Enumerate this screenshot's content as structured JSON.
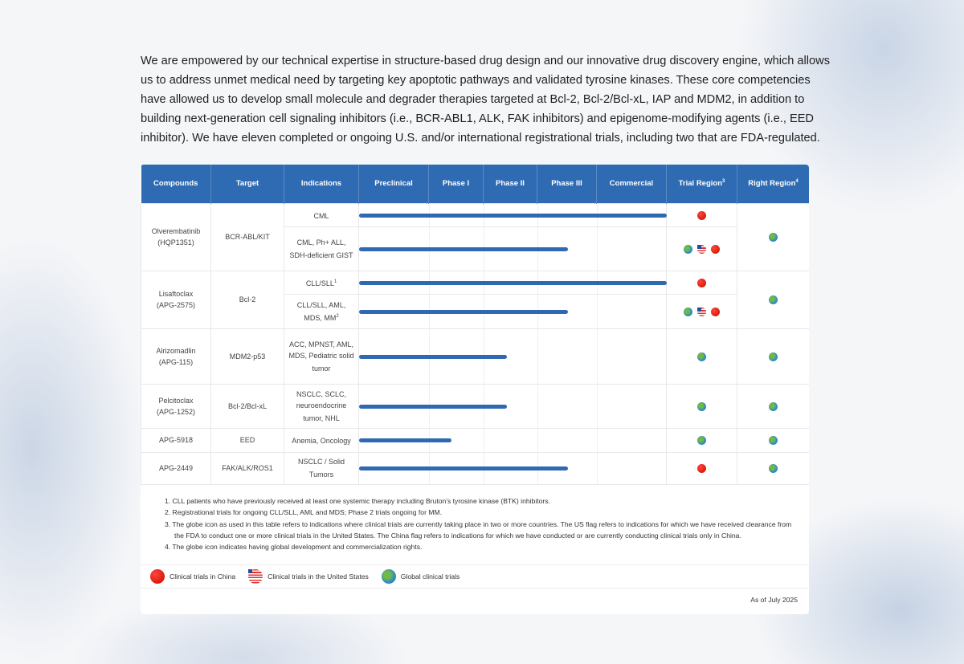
{
  "intro": "We are empowered by our technical expertise in structure-based drug design and our innovative drug discovery engine, which allows us to address unmet medical need by targeting key apoptotic pathways and validated tyrosine kinases. These core competencies have allowed us to develop small molecule and degrader therapies targeted at Bcl-2, Bcl-2/Bcl-xL, IAP and MDM2, in addition to building next-generation cell signaling inhibitors (i.e., BCR-ABL1, ALK, FAK inhibitors) and epigenome-modifying agents (i.e., EED inhibitor). We have eleven completed or ongoing U.S. and/or international registrational trials, including two that are FDA-regulated.",
  "headers": {
    "compounds": "Compounds",
    "target": "Target",
    "indications": "Indications",
    "preclinical": "Preclinical",
    "phase1": "Phase I",
    "phase2": "Phase II",
    "phase3": "Phase III",
    "commercial": "Commercial",
    "trial_region": "Trial Region",
    "trial_region_sup": "3",
    "right_region": "Right Region",
    "right_region_sup": "4"
  },
  "accent": "#2f6bb3",
  "compounds": [
    {
      "name": "Olverembatinib",
      "code": "(HQP1351)",
      "target": "BCR-ABL/KIT",
      "right": [
        "globe"
      ],
      "rows": [
        {
          "indication": "CML",
          "sup": "",
          "progress": 1.0,
          "trial": [
            "china"
          ]
        },
        {
          "indication": "CML, Ph+ ALL, SDH-deficient GIST",
          "sup": "",
          "progress": 0.68,
          "trial": [
            "globe",
            "us",
            "china"
          ]
        }
      ]
    },
    {
      "name": "Lisaftoclax",
      "code": "(APG-2575)",
      "target": "Bcl-2",
      "right": [
        "globe"
      ],
      "rows": [
        {
          "indication": "CLL/SLL",
          "sup": "1",
          "progress": 1.0,
          "trial": [
            "china"
          ]
        },
        {
          "indication": "CLL/SLL, AML, MDS, MM",
          "sup": "2",
          "progress": 0.68,
          "trial": [
            "globe",
            "us",
            "china"
          ]
        }
      ]
    },
    {
      "name": "Alrizomadlin",
      "code": "(APG-115)",
      "target": "MDM2-p53",
      "right": [
        "globe"
      ],
      "rows": [
        {
          "indication": "ACC, MPNST, AML, MDS, Pediatric solid tumor",
          "sup": "",
          "progress": 0.48,
          "trial": [
            "globe"
          ]
        }
      ]
    },
    {
      "name": "Pelcitoclax",
      "code": "(APG-1252)",
      "target": "Bcl-2/Bcl-xL",
      "right": [
        "globe"
      ],
      "rows": [
        {
          "indication": "NSCLC, SCLC, neuroendocrine tumor, NHL",
          "sup": "",
          "progress": 0.48,
          "trial": [
            "globe"
          ]
        }
      ]
    },
    {
      "name": "APG-5918",
      "code": "",
      "target": "EED",
      "right": [
        "globe"
      ],
      "rows": [
        {
          "indication": "Anemia, Oncology",
          "sup": "",
          "progress": 0.3,
          "trial": [
            "globe"
          ]
        }
      ]
    },
    {
      "name": "APG-2449",
      "code": "",
      "target": "FAK/ALK/ROS1",
      "right": [
        "globe"
      ],
      "rows": [
        {
          "indication": "NSCLC / Solid Tumors",
          "sup": "",
          "progress": 0.68,
          "trial": [
            "china"
          ]
        }
      ]
    }
  ],
  "notes": [
    "1. CLL patients who have previously received at least one systemic therapy including Bruton's tyrosine kinase (BTK) inhibitors.",
    "2. Registrational trials for ongoing CLL/SLL, AML and MDS; Phase 2 trials ongoing for MM.",
    "3. The globe icon as used in this table refers to indications where clinical trials are currently taking place in two or more countries. The US flag refers to indications for which we have received clearance from the FDA to conduct one or more clinical trials in the United States. The China flag refers to indications for which we have conducted or are currently conducting clinical trials only in China.",
    "4. The globe icon indicates having global development and commercialization rights."
  ],
  "legend": {
    "china": "Clinical trials in China",
    "us": "Clinical trials in the United States",
    "globe": "Global clinical trials"
  },
  "as_of": "As of July 2025"
}
